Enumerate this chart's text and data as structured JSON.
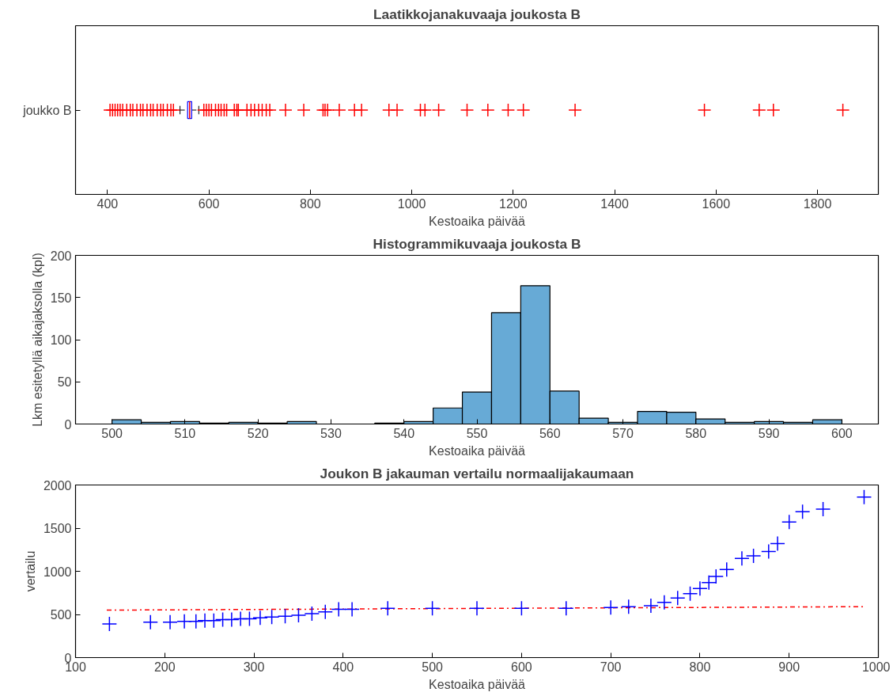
{
  "chart_data": [
    {
      "type": "box",
      "title": "Laatikkojanakuvaaja joukosta B",
      "xlabel": "Kestoaika päivää",
      "orientation": "horizontal",
      "categories": [
        "joukko B"
      ],
      "xlim": [
        337,
        1920
      ],
      "xticks": [
        400,
        600,
        800,
        1000,
        1200,
        1400,
        1600,
        1800
      ],
      "grid": false,
      "marker": "cross",
      "color": "#ff0000",
      "series": [
        {
          "color": "#0000ff",
          "boxes": [
            {
              "low": 543,
              "q1": 558,
              "median": 562,
              "q3": 566,
              "high": 580,
              "outliers": [
                405,
                410,
                415,
                420,
                425,
                430,
                438,
                445,
                450,
                458,
                465,
                470,
                478,
                485,
                490,
                498,
                505,
                510,
                518,
                525,
                530,
                590,
                595,
                600,
                605,
                613,
                619,
                624,
                630,
                635,
                650,
                655,
                658,
                675,
                683,
                690,
                698,
                705,
                713,
                720,
                751,
                787,
                825,
                829,
                834,
                857,
                887,
                901,
                955,
                971,
                1017,
                1026,
                1053,
                1109,
                1150,
                1190,
                1220,
                1322,
                1577,
                1685,
                1713,
                1850
              ]
            }
          ]
        }
      ]
    },
    {
      "type": "histogram",
      "title": "Histogrammikuvaaja joukosta B",
      "xlabel": "Kestoaika päivää",
      "ylabel": "Lkm esitetyllä aikajaksolla (kpl)",
      "color": "#67aad6",
      "grid": false,
      "bins": [
        500,
        504,
        508,
        512,
        516,
        520,
        524,
        528,
        532,
        536,
        540,
        544,
        548,
        552,
        556,
        560,
        564,
        568,
        572,
        576,
        580,
        584,
        588,
        592,
        596,
        600
      ],
      "values": [
        5,
        2,
        3,
        1,
        2,
        1,
        3,
        0,
        0,
        1,
        3,
        19,
        38,
        132,
        164,
        39,
        7,
        2,
        15,
        14,
        6,
        2,
        3,
        2,
        5
      ],
      "xlim": [
        495,
        605
      ],
      "xticks": [
        500,
        510,
        520,
        530,
        540,
        550,
        560,
        570,
        580,
        590,
        600
      ],
      "ylim": [
        0,
        200
      ],
      "yticks": [
        0,
        50,
        100,
        150,
        200
      ]
    },
    {
      "type": "scatter",
      "title": "Joukon B jakauman vertailu normaalijakaumaan",
      "xlabel": "Kestoaika päivää",
      "ylabel": "vertailu",
      "grid": false,
      "xlim": [
        100,
        1000
      ],
      "xticks": [
        100,
        200,
        300,
        400,
        500,
        600,
        700,
        800,
        900,
        1000
      ],
      "ylim": [
        0,
        2000
      ],
      "yticks": [
        0,
        500,
        1000,
        1500,
        2000
      ],
      "series": [
        {
          "type": "line",
          "color": "#ff0000",
          "line_style": "dashdot",
          "marker": "none",
          "x": [
            135,
            984
          ],
          "values": [
            550,
            590
          ]
        },
        {
          "type": "scatter",
          "color": "#0000ff",
          "marker": "cross",
          "x": [
            138,
            184,
            206,
            222,
            235,
            245,
            255,
            265,
            275,
            285,
            295,
            307,
            320,
            335,
            350,
            365,
            380,
            395,
            410,
            450,
            500,
            550,
            600,
            650,
            700,
            720,
            745,
            760,
            775,
            789,
            800,
            810,
            818,
            830,
            847,
            860,
            877,
            887,
            900,
            915,
            938,
            984
          ],
          "values": [
            390,
            410,
            410,
            420,
            420,
            430,
            430,
            440,
            440,
            450,
            450,
            460,
            470,
            480,
            490,
            510,
            530,
            560,
            560,
            570,
            570,
            570,
            570,
            570,
            580,
            590,
            600,
            640,
            690,
            740,
            800,
            870,
            940,
            1020,
            1150,
            1180,
            1230,
            1320,
            1570,
            1690,
            1720,
            1860
          ]
        }
      ]
    }
  ]
}
